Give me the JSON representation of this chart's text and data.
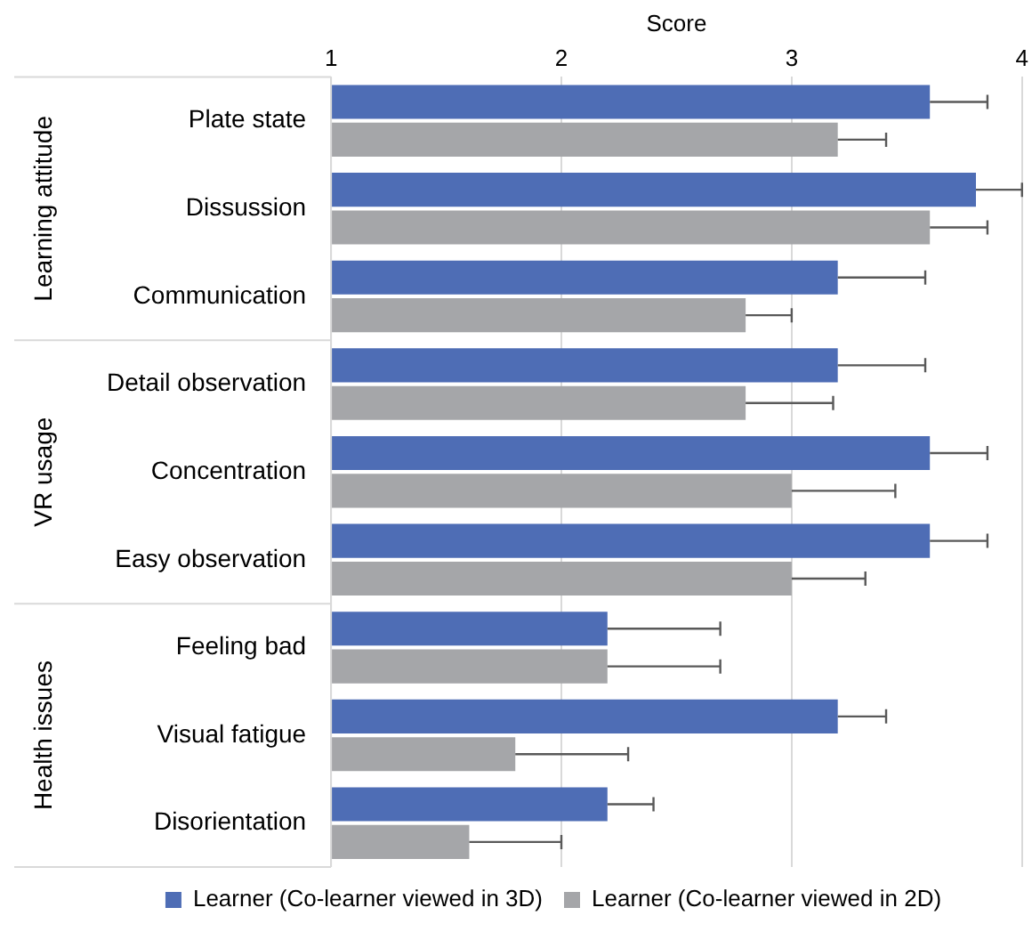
{
  "chart_data": {
    "type": "bar",
    "orientation": "horizontal",
    "xlabel": "Score",
    "categories": [
      "Plate state",
      "Dissussion",
      "Communication",
      "Detail observation",
      "Concentration",
      "Easy observation",
      "Feeling bad",
      "Visual fatigue",
      "Disorientation"
    ],
    "series": [
      {
        "name": "Learner (Co-learner viewed in 3D)",
        "color": "#4e6db5",
        "values": [
          3.6,
          3.8,
          3.2,
          3.2,
          3.6,
          3.6,
          2.2,
          3.2,
          2.2
        ],
        "errors": [
          [
            3.6,
            3.85
          ],
          [
            3.8,
            4.0
          ],
          [
            3.2,
            3.58
          ],
          [
            3.2,
            3.58
          ],
          [
            3.6,
            3.85
          ],
          [
            3.6,
            3.85
          ],
          [
            2.2,
            2.69
          ],
          [
            3.2,
            3.41
          ],
          [
            2.2,
            2.4
          ]
        ]
      },
      {
        "name": "Learner (Co-learner viewed in 2D)",
        "color": "#a5a6a9",
        "values": [
          3.2,
          3.6,
          2.8,
          2.8,
          3.0,
          3.0,
          2.2,
          1.8,
          1.6
        ],
        "errors": [
          [
            3.2,
            3.41
          ],
          [
            3.6,
            3.85
          ],
          [
            2.8,
            3.0
          ],
          [
            2.8,
            3.18
          ],
          [
            3.0,
            3.45
          ],
          [
            3.0,
            3.32
          ],
          [
            2.2,
            2.69
          ],
          [
            1.8,
            2.29
          ],
          [
            1.6,
            2.0
          ]
        ]
      }
    ],
    "xlim": [
      1,
      4
    ],
    "xticks": [
      1,
      2,
      3,
      4
    ],
    "grid": "x",
    "legend": "bottom",
    "annotations": [
      "Learning attitude",
      "VR usage",
      "Health issues"
    ]
  }
}
